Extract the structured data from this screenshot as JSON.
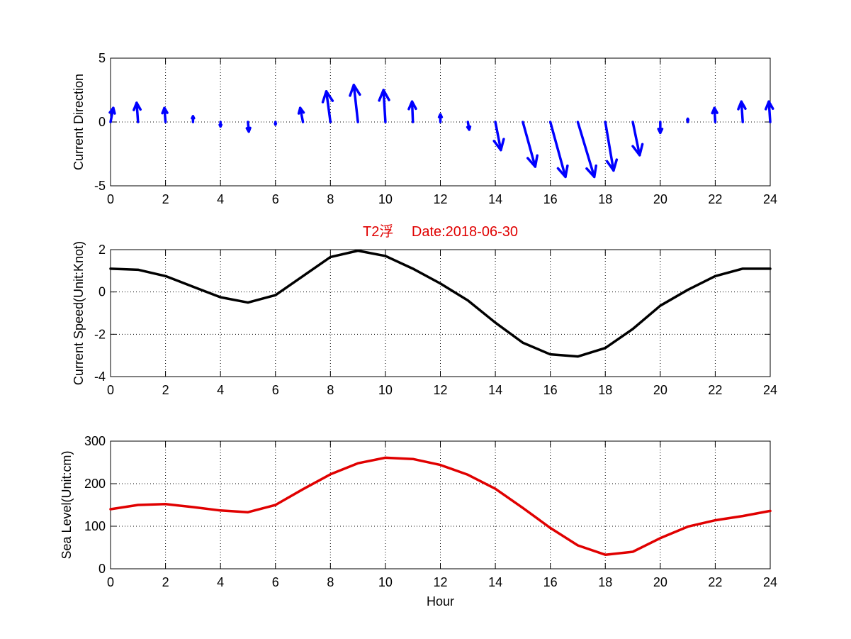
{
  "chart_data": [
    {
      "type": "quiver",
      "title": "",
      "xlabel": "",
      "ylabel": "Current Direction",
      "xlim": [
        0,
        24
      ],
      "ylim": [
        -5,
        5
      ],
      "xticks": [
        0,
        2,
        4,
        6,
        8,
        10,
        12,
        14,
        16,
        18,
        20,
        22,
        24
      ],
      "yticks": [
        -5,
        0,
        5
      ],
      "grid": true,
      "color": "#0000ff",
      "x": [
        0,
        1,
        2,
        3,
        4,
        5,
        6,
        7,
        8,
        9,
        10,
        11,
        12,
        13,
        14,
        15,
        16,
        17,
        18,
        19,
        20,
        21,
        22,
        23,
        24
      ],
      "u": [
        0.1,
        -0.05,
        -0.04,
        0.0,
        0.0,
        0.03,
        0.0,
        -0.1,
        -0.15,
        -0.15,
        -0.07,
        -0.03,
        0.0,
        0.05,
        0.2,
        0.45,
        0.55,
        0.6,
        0.3,
        0.25,
        0.0,
        0.0,
        -0.03,
        -0.05,
        -0.05
      ],
      "v": [
        1.1,
        1.5,
        1.1,
        0.45,
        -0.35,
        -0.75,
        -0.2,
        1.1,
        2.4,
        2.9,
        2.5,
        1.6,
        0.6,
        -0.6,
        -2.2,
        -3.5,
        -4.3,
        -4.3,
        -3.8,
        -2.6,
        -0.85,
        0.25,
        1.1,
        1.6,
        1.6
      ]
    },
    {
      "type": "line",
      "title": "T2浮　 Date:2018-06-30",
      "xlabel": "",
      "ylabel": "Current Speed(Unit:Knot)",
      "xlim": [
        0,
        24
      ],
      "ylim": [
        -4,
        2
      ],
      "xticks": [
        0,
        2,
        4,
        6,
        8,
        10,
        12,
        14,
        16,
        18,
        20,
        22,
        24
      ],
      "yticks": [
        -4,
        -2,
        0,
        2
      ],
      "grid": true,
      "color": "#000000",
      "x": [
        0,
        1,
        2,
        3,
        4,
        5,
        6,
        7,
        8,
        9,
        10,
        11,
        12,
        13,
        14,
        15,
        16,
        17,
        18,
        19,
        20,
        21,
        22,
        23,
        24
      ],
      "y": [
        1.1,
        1.05,
        0.75,
        0.25,
        -0.25,
        -0.5,
        -0.15,
        0.75,
        1.65,
        1.95,
        1.7,
        1.1,
        0.4,
        -0.4,
        -1.45,
        -2.4,
        -2.95,
        -3.05,
        -2.65,
        -1.75,
        -0.65,
        0.1,
        0.75,
        1.1,
        1.1
      ]
    },
    {
      "type": "line",
      "title": "",
      "xlabel": "Hour",
      "ylabel": "Sea Level(Unit:cm)",
      "xlim": [
        0,
        24
      ],
      "ylim": [
        0,
        300
      ],
      "xticks": [
        0,
        2,
        4,
        6,
        8,
        10,
        12,
        14,
        16,
        18,
        20,
        22,
        24
      ],
      "yticks": [
        0,
        100,
        200,
        300
      ],
      "grid": true,
      "color": "#e00000",
      "x": [
        0,
        1,
        2,
        3,
        4,
        5,
        6,
        7,
        8,
        9,
        10,
        11,
        12,
        13,
        14,
        15,
        16,
        17,
        18,
        19,
        20,
        21,
        22,
        23,
        24
      ],
      "y": [
        140,
        150,
        152,
        145,
        137,
        133,
        150,
        187,
        222,
        248,
        261,
        258,
        244,
        221,
        188,
        143,
        96,
        55,
        33,
        40,
        72,
        99,
        114,
        124,
        136
      ]
    }
  ]
}
